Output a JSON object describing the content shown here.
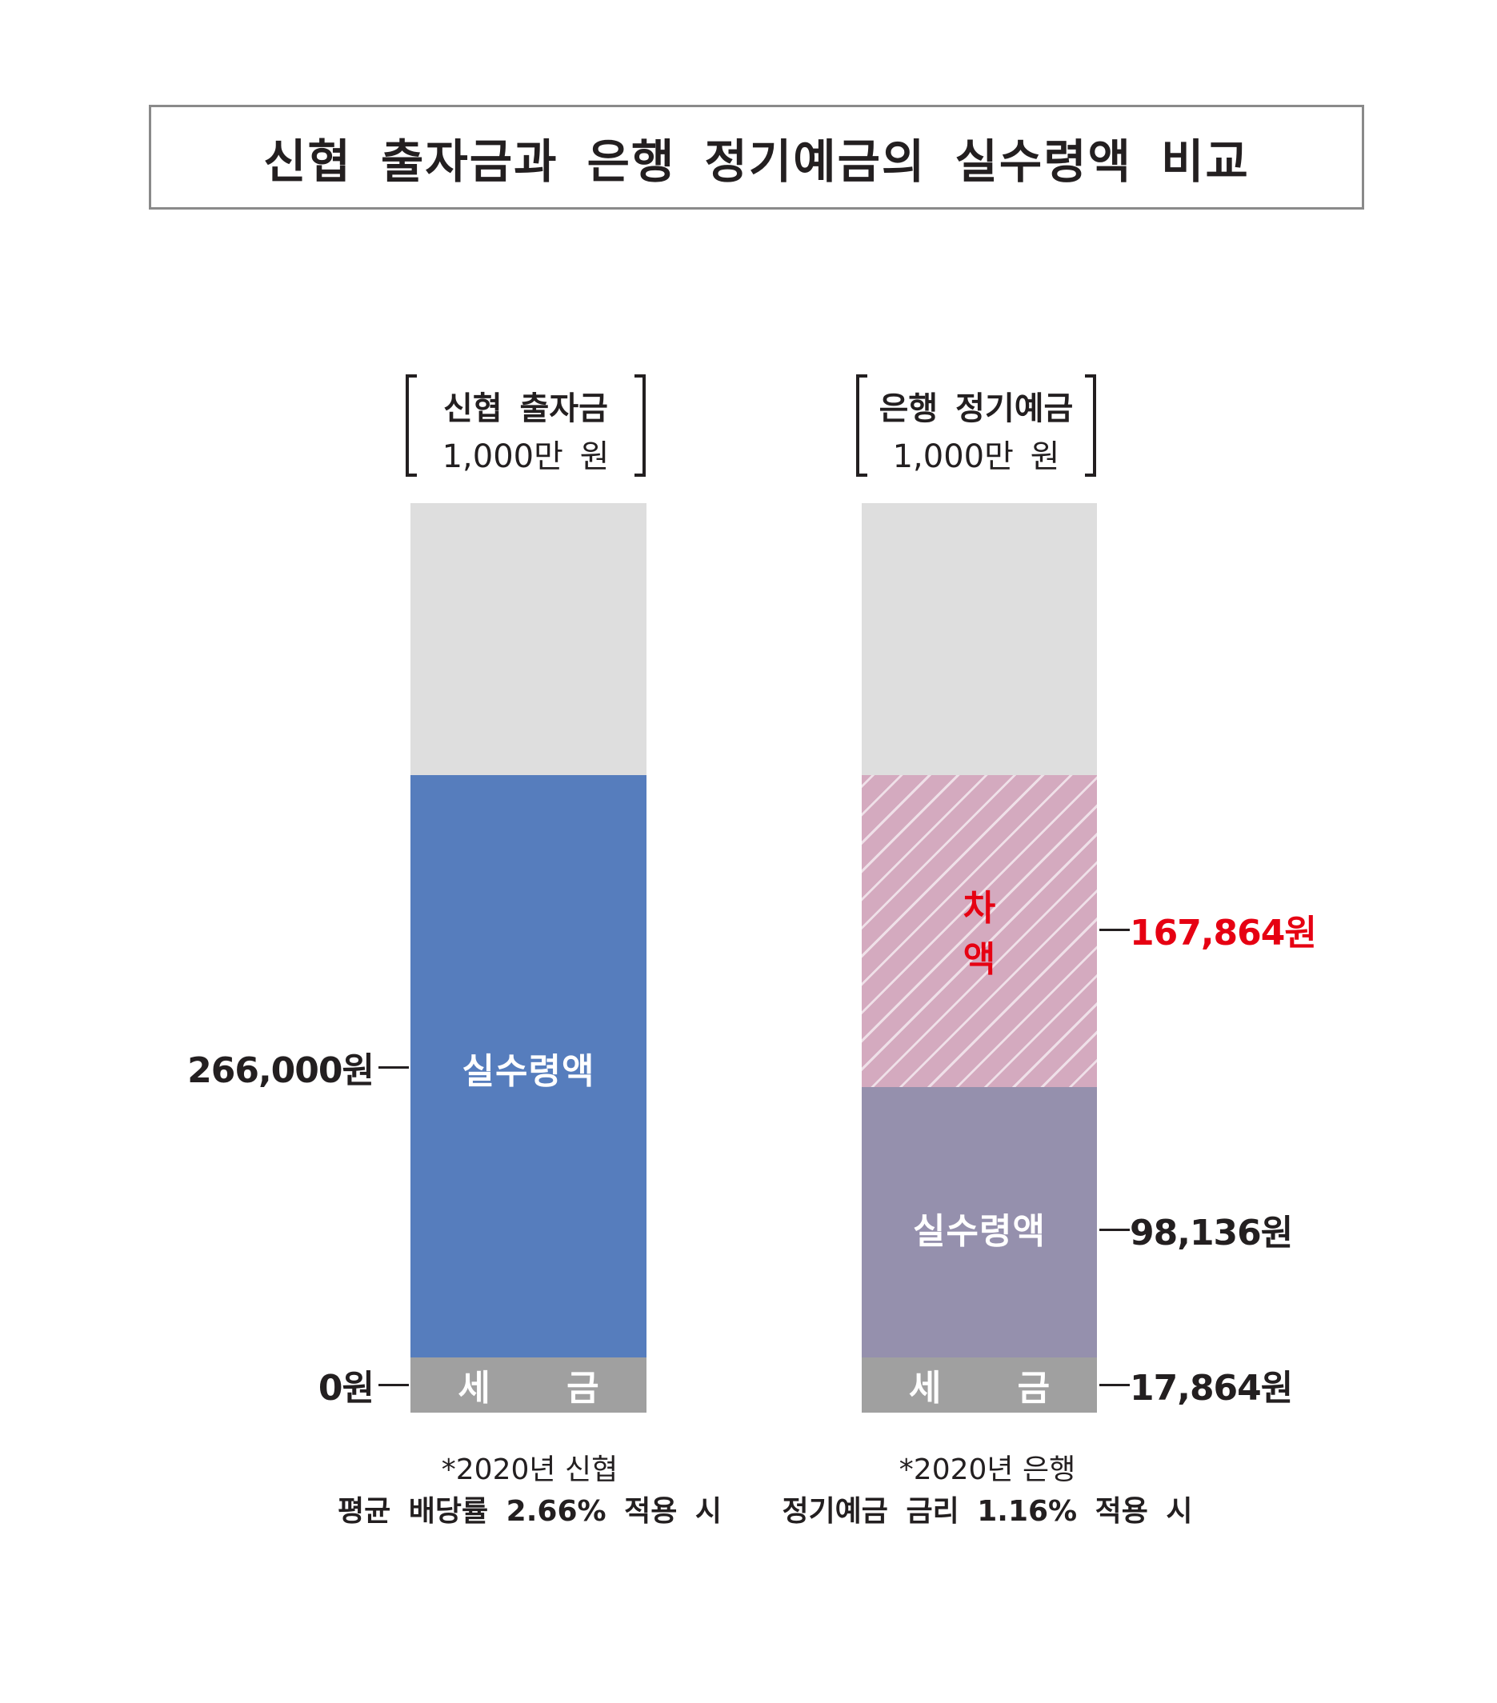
{
  "title": "신협 출자금과 은행 정기예금의 실수령액 비교",
  "chart_data": {
    "type": "bar",
    "stacked": true,
    "title": "신협 출자금과 은행 정기예금의 실수령액 비교",
    "bars": [
      {
        "name": "신협 출자금",
        "amount_label": "1,000만 원",
        "segments": [
          {
            "name": "세 금",
            "value": 0,
            "color": "#a0a0a0"
          },
          {
            "name": "실수령액",
            "value": 266000,
            "color": "#567dbd"
          }
        ],
        "value_labels": {
          "tax": "0원",
          "net": "266,000원"
        },
        "note": [
          "*2020년 신협",
          "평균 배당률 2.66% 적용 시"
        ]
      },
      {
        "name": "은행 정기예금",
        "amount_label": "1,000만 원",
        "segments": [
          {
            "name": "세 금",
            "value": 17864,
            "color": "#a0a0a0"
          },
          {
            "name": "실수령액",
            "value": 98136,
            "color": "#9590ad"
          },
          {
            "name": "차 액",
            "value": 167864,
            "color": "#d4aabf",
            "pattern": "diagonal-stripes"
          }
        ],
        "value_labels": {
          "tax": "17,864원",
          "net": "98,136원",
          "diff": "167,864원"
        },
        "note": [
          "*2020년 은행",
          "정기예금 금리 1.16% 적용 시"
        ]
      }
    ],
    "remainder_color": "#dedede",
    "accent_color": "#e60012",
    "legend": "none",
    "grid": false
  }
}
